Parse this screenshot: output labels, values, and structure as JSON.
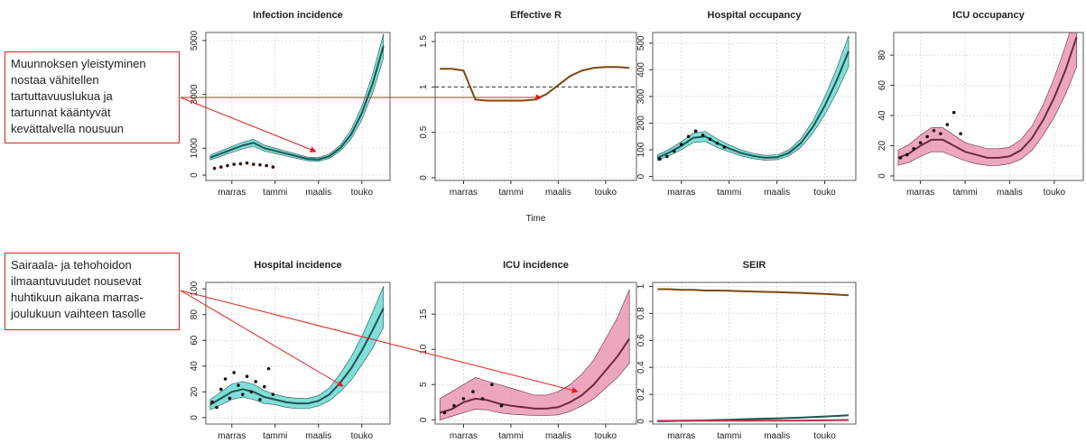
{
  "annotations": [
    {
      "lines": [
        "Muunnoksen yleistyminen",
        "nostaa vähitellen",
        "tartuttavuuslukua ja",
        "tartunnat kääntyvät",
        "kevättalvella nousuun"
      ]
    },
    {
      "lines": [
        "Sairaala- ja tehohoidon",
        "ilmaantuvuudet nousevat",
        "huhtikuun aikana marras-",
        "joulukuun vaihteen tasolle"
      ]
    }
  ],
  "chart_data": [
    {
      "type": "line",
      "title": "Infection incidence",
      "grid": true,
      "x": [
        -1,
        -0.5,
        0,
        0.5,
        1,
        1.5,
        2,
        2.5,
        3,
        3.5,
        4,
        4.5,
        5,
        5.5,
        6,
        6.5,
        7
      ],
      "xlim": [
        -1.2,
        7.3
      ],
      "xticks": [
        {
          "value": 0,
          "label": "marras"
        },
        {
          "value": 2,
          "label": "tammi"
        },
        {
          "value": 4,
          "label": "maalis"
        },
        {
          "value": 6,
          "label": "touko"
        }
      ],
      "ylim": [
        -200,
        5300
      ],
      "yticks": [
        0,
        1000,
        3000,
        5000
      ],
      "series": [
        {
          "color": "#1f5452",
          "band_color": "#58d3cb",
          "values": [
            650,
            800,
            950,
            1100,
            1200,
            1000,
            900,
            800,
            700,
            600,
            580,
            700,
            1000,
            1500,
            2300,
            3400,
            4800
          ],
          "lower": [
            560,
            700,
            840,
            980,
            1070,
            890,
            800,
            710,
            620,
            530,
            510,
            620,
            890,
            1330,
            2050,
            3050,
            4350
          ],
          "upper": [
            740,
            900,
            1060,
            1220,
            1330,
            1110,
            1000,
            890,
            780,
            670,
            650,
            780,
            1110,
            1670,
            2550,
            3750,
            5250
          ]
        },
        {
          "kind": "points",
          "color": "#3a1010",
          "x": [
            -0.8,
            -0.5,
            -0.2,
            0.1,
            0.4,
            0.7,
            1,
            1.3,
            1.6,
            1.9
          ],
          "values": [
            250,
            300,
            350,
            400,
            420,
            450,
            400,
            380,
            350,
            300
          ]
        }
      ]
    },
    {
      "type": "line",
      "title": "Effective R",
      "xlabel": "Time",
      "grid": true,
      "reference_line": 1,
      "x": [
        -1,
        -0.5,
        0,
        0.5,
        1,
        1.5,
        2,
        2.5,
        3,
        3.5,
        4,
        4.5,
        5,
        5.5,
        6,
        6.5,
        7
      ],
      "xlim": [
        -1.2,
        7.3
      ],
      "xticks": [
        {
          "value": 0,
          "label": "marras"
        },
        {
          "value": 2,
          "label": "tammi"
        },
        {
          "value": 4,
          "label": "maalis"
        },
        {
          "value": 6,
          "label": "touko"
        }
      ],
      "ylim": [
        -0.03,
        1.6
      ],
      "yticks": [
        0,
        0.5,
        1,
        1.5
      ],
      "series": [
        {
          "color": "#7a4a0a",
          "values": [
            1.2,
            1.2,
            1.18,
            0.86,
            0.85,
            0.85,
            0.85,
            0.85,
            0.86,
            0.92,
            1.02,
            1.12,
            1.18,
            1.21,
            1.22,
            1.22,
            1.21
          ]
        }
      ]
    },
    {
      "type": "line",
      "title": "Hospital occupancy",
      "grid": true,
      "x": [
        -1,
        -0.5,
        0,
        0.5,
        1,
        1.5,
        2,
        2.5,
        3,
        3.5,
        4,
        4.5,
        5,
        5.5,
        6,
        6.5,
        7
      ],
      "xlim": [
        -1.2,
        7.3
      ],
      "xticks": [
        {
          "value": 0,
          "label": "marras"
        },
        {
          "value": 2,
          "label": "tammi"
        },
        {
          "value": 4,
          "label": "maalis"
        },
        {
          "value": 6,
          "label": "touko"
        }
      ],
      "ylim": [
        -15,
        540
      ],
      "yticks": [
        0,
        100,
        200,
        300,
        400,
        500
      ],
      "series": [
        {
          "color": "#1f5452",
          "band_color": "#58d3cb",
          "values": [
            70,
            90,
            115,
            145,
            150,
            125,
            105,
            88,
            77,
            70,
            72,
            88,
            125,
            185,
            265,
            360,
            470
          ],
          "lower": [
            60,
            78,
            100,
            127,
            131,
            109,
            92,
            77,
            67,
            61,
            63,
            77,
            109,
            162,
            232,
            315,
            412
          ],
          "upper": [
            80,
            102,
            130,
            163,
            169,
            141,
            118,
            99,
            87,
            79,
            81,
            99,
            141,
            208,
            298,
            405,
            528
          ]
        },
        {
          "kind": "points",
          "color": "#111111",
          "x": [
            -0.9,
            -0.6,
            -0.3,
            0,
            0.3,
            0.6,
            0.9,
            1.2,
            1.5,
            1.8
          ],
          "values": [
            65,
            75,
            95,
            120,
            150,
            170,
            155,
            140,
            125,
            110
          ]
        }
      ]
    },
    {
      "type": "line",
      "title": "ICU occupancy",
      "grid": true,
      "x": [
        -1,
        -0.5,
        0,
        0.5,
        1,
        1.5,
        2,
        2.5,
        3,
        3.5,
        4,
        4.5,
        5,
        5.5,
        6,
        6.5,
        7
      ],
      "xlim": [
        -1.2,
        7.3
      ],
      "xticks": [
        {
          "value": 0,
          "label": "marras"
        },
        {
          "value": 2,
          "label": "tammi"
        },
        {
          "value": 4,
          "label": "maalis"
        },
        {
          "value": 6,
          "label": "touko"
        }
      ],
      "ylim": [
        -3,
        95
      ],
      "yticks": [
        0,
        20,
        40,
        60,
        80
      ],
      "series": [
        {
          "color": "#6b2a3a",
          "band_color": "#e58aaa",
          "values": [
            12,
            15,
            20,
            24,
            24,
            20,
            16,
            14,
            12,
            12,
            13,
            17,
            25,
            37,
            52,
            70,
            92
          ],
          "lower": [
            7,
            9,
            13,
            16,
            16,
            13,
            10,
            8,
            7,
            7,
            8,
            11,
            17,
            27,
            39,
            54,
            72
          ],
          "upper": [
            17,
            21,
            27,
            32,
            32,
            27,
            22,
            20,
            18,
            18,
            19,
            24,
            33,
            47,
            65,
            86,
            110
          ]
        },
        {
          "kind": "points",
          "color": "#111111",
          "x": [
            -0.9,
            -0.6,
            -0.3,
            0,
            0.3,
            0.6,
            0.9,
            1.2,
            1.5,
            1.8
          ],
          "values": [
            12,
            14,
            18,
            22,
            26,
            30,
            28,
            34,
            42,
            28
          ]
        }
      ]
    },
    {
      "type": "line",
      "title": "Hospital incidence",
      "grid": true,
      "x": [
        -1,
        -0.5,
        0,
        0.5,
        1,
        1.5,
        2,
        2.5,
        3,
        3.5,
        4,
        4.5,
        5,
        5.5,
        6,
        6.5,
        7
      ],
      "xlim": [
        -1.2,
        7.3
      ],
      "xticks": [
        {
          "value": 0,
          "label": "marras"
        },
        {
          "value": 2,
          "label": "tammi"
        },
        {
          "value": 4,
          "label": "maalis"
        },
        {
          "value": 6,
          "label": "touko"
        }
      ],
      "ylim": [
        -5,
        105
      ],
      "yticks": [
        0,
        20,
        40,
        60,
        80,
        100
      ],
      "series": [
        {
          "color": "#1f5452",
          "band_color": "#58d3cb",
          "values": [
            10,
            15,
            20,
            22,
            20,
            16,
            14,
            12,
            11,
            11,
            13,
            18,
            27,
            38,
            52,
            68,
            85
          ],
          "lower": [
            6,
            10,
            14,
            16,
            14,
            11,
            10,
            8,
            7,
            7,
            9,
            13,
            20,
            29,
            41,
            54,
            70
          ],
          "upper": [
            14,
            20,
            26,
            28,
            26,
            21,
            18,
            16,
            15,
            15,
            17,
            23,
            34,
            47,
            63,
            82,
            102
          ]
        },
        {
          "kind": "points",
          "color": "#111111",
          "x": [
            -0.9,
            -0.7,
            -0.5,
            -0.3,
            -0.1,
            0.1,
            0.3,
            0.5,
            0.7,
            0.9,
            1.1,
            1.3,
            1.5,
            1.7,
            1.9
          ],
          "values": [
            12,
            8,
            22,
            30,
            15,
            35,
            25,
            18,
            32,
            20,
            28,
            14,
            24,
            38,
            18
          ]
        }
      ]
    },
    {
      "type": "line",
      "title": "ICU incidence",
      "grid": true,
      "x": [
        -1,
        -0.5,
        0,
        0.5,
        1,
        1.5,
        2,
        2.5,
        3,
        3.5,
        4,
        4.5,
        5,
        5.5,
        6,
        6.5,
        7
      ],
      "xlim": [
        -1.2,
        7.3
      ],
      "xticks": [
        {
          "value": 0,
          "label": "marras"
        },
        {
          "value": 2,
          "label": "tammi"
        },
        {
          "value": 4,
          "label": "maalis"
        },
        {
          "value": 6,
          "label": "touko"
        }
      ],
      "ylim": [
        -0.6,
        19.5
      ],
      "yticks": [
        0,
        5,
        10,
        15
      ],
      "series": [
        {
          "color": "#6b2a3a",
          "band_color": "#e58aaa",
          "values": [
            1,
            1.5,
            2.5,
            3,
            2.8,
            2.3,
            2,
            1.8,
            1.6,
            1.6,
            1.8,
            2.5,
            3.5,
            5,
            7,
            9,
            11.5
          ],
          "lower": [
            0,
            0.5,
            1,
            1.5,
            1.4,
            1,
            0.8,
            0.7,
            0.6,
            0.6,
            0.7,
            1.2,
            2,
            3,
            4.5,
            6,
            8
          ],
          "upper": [
            3,
            4,
            5,
            6,
            5.5,
            5,
            4.5,
            4,
            3.5,
            3.5,
            4,
            5,
            6.5,
            8.5,
            11.5,
            14.5,
            18.5
          ]
        },
        {
          "kind": "points",
          "color": "#111111",
          "x": [
            -0.8,
            -0.4,
            0,
            0.4,
            0.8,
            1.2,
            1.6
          ],
          "values": [
            1,
            2,
            3,
            4,
            3,
            5,
            2
          ]
        }
      ]
    },
    {
      "type": "line",
      "title": "SEIR",
      "grid": true,
      "x": [
        -1,
        -0.5,
        0,
        0.5,
        1,
        1.5,
        2,
        2.5,
        3,
        3.5,
        4,
        4.5,
        5,
        5.5,
        6,
        6.5,
        7
      ],
      "xlim": [
        -1.2,
        7.3
      ],
      "xticks": [
        {
          "value": 0,
          "label": "marras"
        },
        {
          "value": 2,
          "label": "tammi"
        },
        {
          "value": 4,
          "label": "maalis"
        },
        {
          "value": 6,
          "label": "touko"
        }
      ],
      "ylim": [
        -0.02,
        1.03
      ],
      "yticks": [
        0,
        0.2,
        0.4,
        0.6,
        0.8,
        1
      ],
      "series": [
        {
          "color": "#7a4a0a",
          "values": [
            0.98,
            0.98,
            0.975,
            0.975,
            0.97,
            0.97,
            0.968,
            0.965,
            0.962,
            0.96,
            0.958,
            0.955,
            0.952,
            0.948,
            0.945,
            0.94,
            0.935
          ]
        },
        {
          "color": "#1f5452",
          "values": [
            0,
            0.002,
            0.004,
            0.006,
            0.008,
            0.01,
            0.012,
            0.015,
            0.018,
            0.02,
            0.022,
            0.025,
            0.028,
            0.032,
            0.036,
            0.04,
            0.045
          ]
        },
        {
          "color": "#c0304a",
          "values": [
            0.003,
            0.004,
            0.005,
            0.005,
            0.005,
            0.005,
            0.005,
            0.005,
            0.005,
            0.005,
            0.005,
            0.005,
            0.006,
            0.007,
            0.008,
            0.009,
            0.01
          ]
        }
      ]
    }
  ]
}
